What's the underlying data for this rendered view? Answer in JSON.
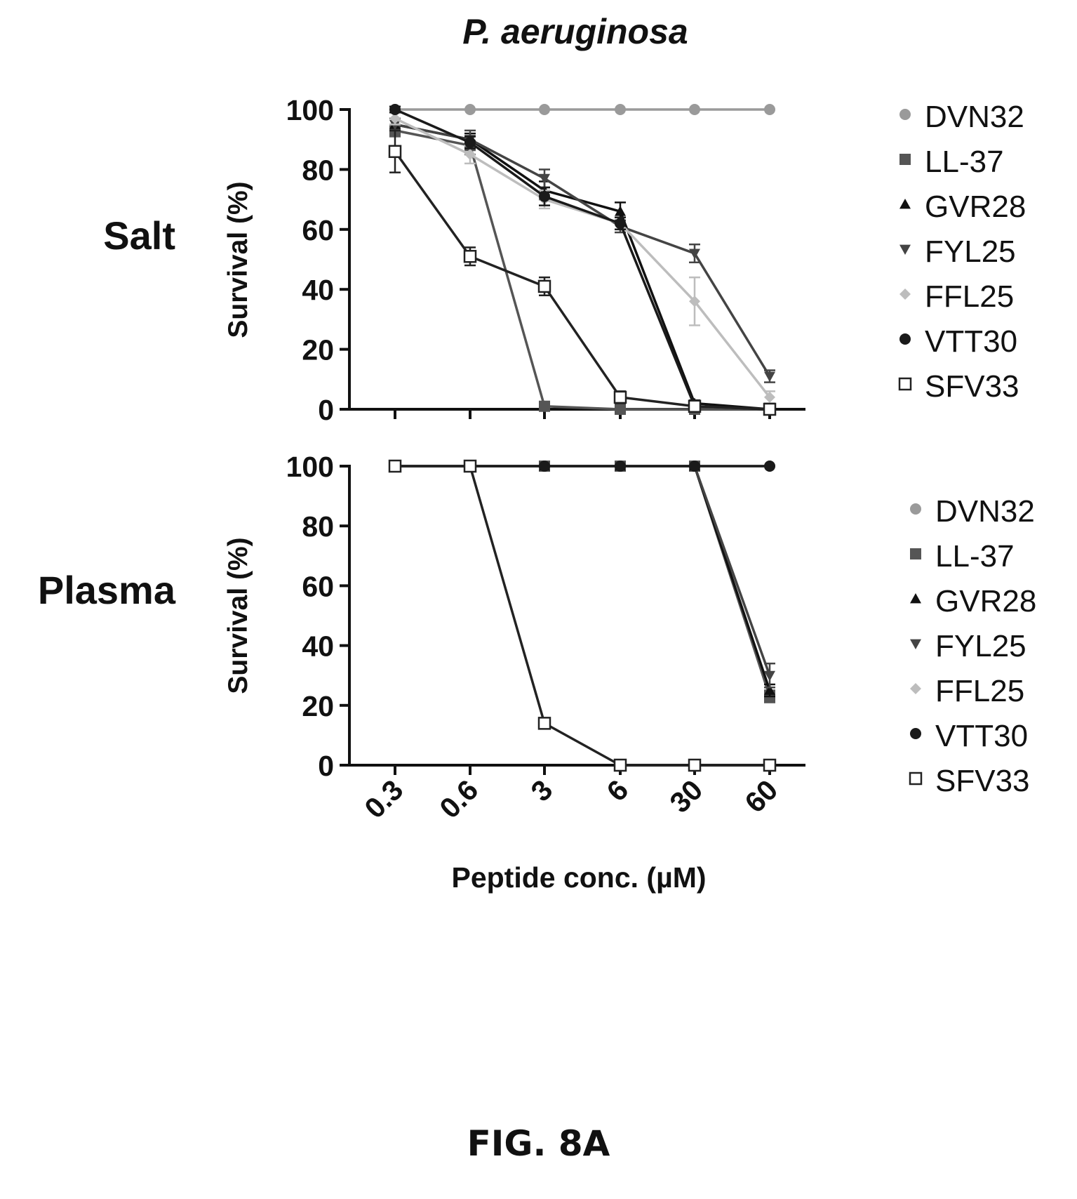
{
  "figure": {
    "title": "P. aeruginosa",
    "fig_label": "FIG. 8A",
    "x_axis_label": "Peptide conc. (µM)",
    "y_axis_label": "Survival (%)"
  },
  "chart_data": [
    {
      "type": "line",
      "panel_label": "Salt",
      "ylabel": "Survival (%)",
      "xlabel": "",
      "x": [
        "0.3",
        "0.6",
        "3",
        "6",
        "30",
        "60"
      ],
      "ylim": [
        0,
        100
      ],
      "yticks": [
        0,
        20,
        40,
        60,
        80,
        100
      ],
      "legend_position": "right",
      "series": [
        {
          "name": "DVN32",
          "marker": "circle",
          "color": "#9a9a9a",
          "values": [
            100,
            100,
            100,
            100,
            100,
            100
          ],
          "err": [
            0,
            0,
            0,
            0,
            0,
            0
          ]
        },
        {
          "name": "LL-37",
          "marker": "square",
          "color": "#555555",
          "values": [
            93,
            88,
            1,
            0,
            0,
            0
          ],
          "err": [
            2,
            3,
            1,
            0,
            0,
            0
          ]
        },
        {
          "name": "GVR28",
          "marker": "triangle-up",
          "color": "#111111",
          "values": [
            95,
            90,
            73,
            66,
            2,
            0
          ],
          "err": [
            2,
            2,
            3,
            3,
            1,
            0
          ]
        },
        {
          "name": "FYL25",
          "marker": "triangle-down",
          "color": "#444444",
          "values": [
            95,
            90,
            77,
            61,
            52,
            11
          ],
          "err": [
            2,
            3,
            3,
            2,
            3,
            2
          ]
        },
        {
          "name": "FFL25",
          "marker": "diamond",
          "color": "#bdbdbd",
          "values": [
            97,
            85,
            70,
            62,
            36,
            4
          ],
          "err": [
            2,
            3,
            3,
            2,
            8,
            2
          ]
        },
        {
          "name": "VTT30",
          "marker": "circle",
          "color": "#1a1a1a",
          "values": [
            100,
            89,
            71,
            62,
            1,
            0
          ],
          "err": [
            1,
            2,
            3,
            2,
            1,
            0
          ]
        },
        {
          "name": "SFV33",
          "marker": "square-open",
          "color": "#222222",
          "values": [
            86,
            51,
            41,
            4,
            1,
            0
          ],
          "err": [
            7,
            3,
            3,
            2,
            1,
            0
          ]
        }
      ]
    },
    {
      "type": "line",
      "panel_label": "Plasma",
      "ylabel": "Survival (%)",
      "xlabel": "Peptide conc. (µM)",
      "x": [
        "0.3",
        "0.6",
        "3",
        "6",
        "30",
        "60"
      ],
      "ylim": [
        0,
        100
      ],
      "yticks": [
        0,
        20,
        40,
        60,
        80,
        100
      ],
      "legend_position": "right",
      "series": [
        {
          "name": "DVN32",
          "marker": "circle",
          "color": "#9a9a9a",
          "values": [
            100,
            100,
            100,
            100,
            100,
            100
          ],
          "err": [
            0,
            0,
            0,
            0,
            0,
            0
          ]
        },
        {
          "name": "LL-37",
          "marker": "square",
          "color": "#555555",
          "values": [
            100,
            100,
            100,
            100,
            100,
            23
          ],
          "err": [
            0,
            0,
            0,
            0,
            0,
            2
          ]
        },
        {
          "name": "GVR28",
          "marker": "triangle-up",
          "color": "#111111",
          "values": [
            100,
            100,
            100,
            100,
            100,
            25
          ],
          "err": [
            0,
            0,
            0,
            0,
            0,
            2
          ]
        },
        {
          "name": "FYL25",
          "marker": "triangle-down",
          "color": "#444444",
          "values": [
            100,
            100,
            100,
            100,
            100,
            30
          ],
          "err": [
            0,
            0,
            0,
            0,
            0,
            4
          ]
        },
        {
          "name": "FFL25",
          "marker": "diamond",
          "color": "#bdbdbd",
          "values": [
            100,
            100,
            100,
            100,
            100,
            100
          ],
          "err": [
            0,
            0,
            0,
            0,
            0,
            0
          ]
        },
        {
          "name": "VTT30",
          "marker": "circle",
          "color": "#1a1a1a",
          "values": [
            100,
            100,
            100,
            100,
            100,
            100
          ],
          "err": [
            0,
            0,
            0,
            0,
            0,
            0
          ]
        },
        {
          "name": "SFV33",
          "marker": "square-open",
          "color": "#222222",
          "values": [
            100,
            100,
            14,
            0,
            0,
            0
          ],
          "err": [
            0,
            0,
            1,
            0,
            0,
            0
          ]
        }
      ]
    }
  ]
}
